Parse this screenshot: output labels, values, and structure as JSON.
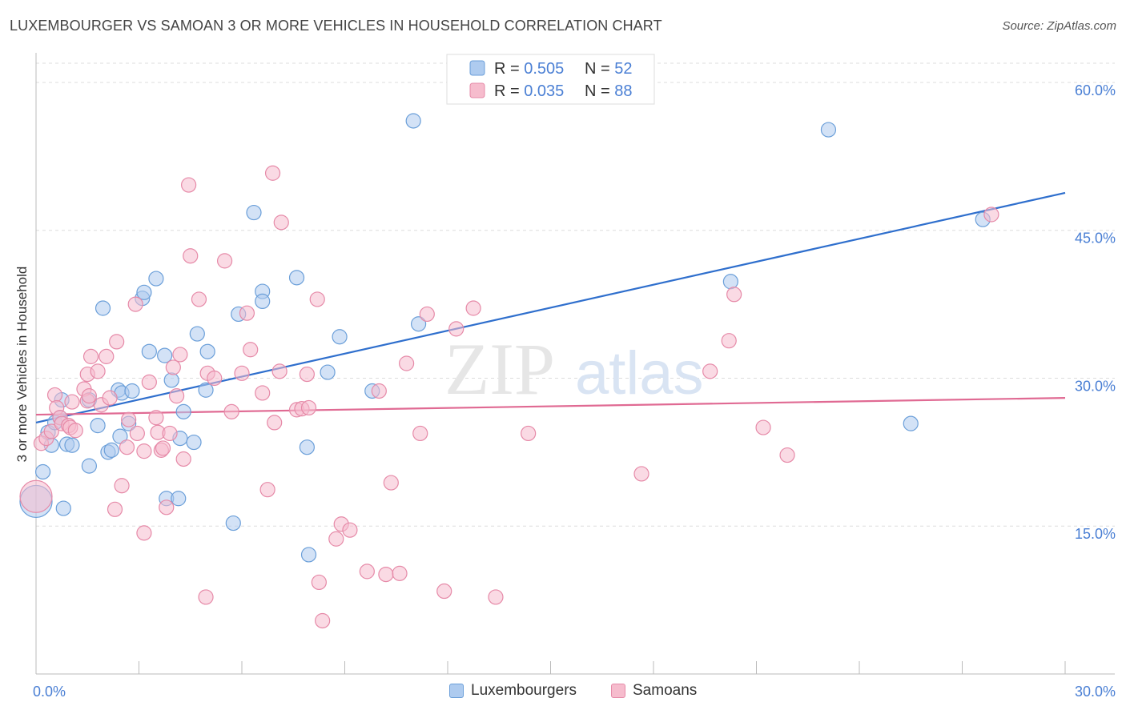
{
  "title": "LUXEMBOURGER VS SAMOAN 3 OR MORE VEHICLES IN HOUSEHOLD CORRELATION CHART",
  "source": "Source: ZipAtlas.com",
  "watermark": {
    "zip": "ZIP",
    "atlas": "atlas"
  },
  "colors": {
    "lux_fill": "#aecbef",
    "lux_stroke": "#6b9fd9",
    "lux_line": "#2f6fcd",
    "sam_fill": "#f6bccd",
    "sam_stroke": "#e68aa8",
    "sam_line": "#e06a93",
    "axis_text": "#4a7fd4",
    "grid": "#dddddd"
  },
  "legend": {
    "rows": [
      {
        "r_label": "R = ",
        "r_value": "0.505",
        "n_label": "N = ",
        "n_value": "52"
      },
      {
        "r_label": "R = ",
        "r_value": "0.035",
        "n_label": "N = ",
        "n_value": "88"
      }
    ]
  },
  "chart_data": {
    "type": "scatter",
    "title": "LUXEMBOURGER VS SAMOAN 3 OR MORE VEHICLES IN HOUSEHOLD CORRELATION CHART",
    "xlabel": "",
    "ylabel": "3 or more Vehicles in Household",
    "xlim": [
      0,
      30
    ],
    "ylim": [
      0,
      63
    ],
    "x_tick_labels": [
      "0.0%",
      "30.0%"
    ],
    "y_ticks": [
      15,
      30,
      45,
      60
    ],
    "y_tick_labels": [
      "15.0%",
      "30.0%",
      "45.0%",
      "60.0%"
    ],
    "grid": true,
    "legend_position": "top-center",
    "series": [
      {
        "name": "Luxembourgers",
        "trend": {
          "x": [
            0,
            30
          ],
          "y": [
            25.5,
            48.8
          ]
        },
        "points": [
          [
            0.0,
            17.5
          ],
          [
            0.2,
            20.5
          ],
          [
            0.35,
            24.5
          ],
          [
            0.45,
            23.2
          ],
          [
            0.55,
            25.5
          ],
          [
            0.7,
            26.0
          ],
          [
            0.75,
            27.8
          ],
          [
            0.8,
            16.8
          ],
          [
            0.9,
            23.3
          ],
          [
            1.05,
            23.2
          ],
          [
            1.55,
            27.8
          ],
          [
            1.55,
            21.1
          ],
          [
            1.8,
            25.2
          ],
          [
            1.95,
            37.1
          ],
          [
            2.1,
            22.5
          ],
          [
            2.2,
            22.7
          ],
          [
            2.4,
            28.8
          ],
          [
            2.45,
            24.1
          ],
          [
            2.5,
            28.5
          ],
          [
            2.7,
            25.4
          ],
          [
            2.8,
            28.7
          ],
          [
            3.1,
            38.1
          ],
          [
            3.15,
            38.7
          ],
          [
            3.3,
            32.7
          ],
          [
            3.5,
            40.1
          ],
          [
            3.75,
            32.3
          ],
          [
            3.8,
            17.8
          ],
          [
            3.95,
            29.8
          ],
          [
            4.15,
            17.8
          ],
          [
            4.2,
            23.9
          ],
          [
            4.3,
            26.6
          ],
          [
            4.6,
            23.5
          ],
          [
            4.7,
            34.5
          ],
          [
            4.95,
            28.8
          ],
          [
            5.0,
            32.7
          ],
          [
            5.75,
            15.3
          ],
          [
            5.9,
            36.5
          ],
          [
            6.35,
            46.8
          ],
          [
            6.6,
            38.8
          ],
          [
            6.6,
            37.8
          ],
          [
            7.6,
            40.2
          ],
          [
            7.9,
            23.0
          ],
          [
            7.95,
            12.1
          ],
          [
            8.5,
            30.6
          ],
          [
            8.85,
            34.2
          ],
          [
            9.8,
            28.7
          ],
          [
            11.0,
            56.1
          ],
          [
            11.15,
            35.5
          ],
          [
            20.25,
            39.8
          ],
          [
            23.1,
            55.2
          ],
          [
            25.5,
            25.4
          ],
          [
            27.6,
            46.1
          ]
        ]
      },
      {
        "name": "Samoans",
        "trend": {
          "x": [
            0,
            30
          ],
          "y": [
            26.3,
            28.0
          ]
        },
        "points": [
          [
            0.0,
            18.0
          ],
          [
            0.15,
            23.4
          ],
          [
            0.3,
            23.9
          ],
          [
            0.45,
            24.6
          ],
          [
            0.55,
            28.3
          ],
          [
            0.6,
            27.0
          ],
          [
            0.7,
            26.0
          ],
          [
            0.75,
            25.4
          ],
          [
            0.95,
            25.2
          ],
          [
            1.0,
            25.0
          ],
          [
            1.05,
            27.6
          ],
          [
            1.15,
            24.7
          ],
          [
            1.4,
            28.9
          ],
          [
            1.5,
            27.7
          ],
          [
            1.5,
            30.4
          ],
          [
            1.55,
            28.2
          ],
          [
            1.6,
            32.2
          ],
          [
            1.8,
            30.7
          ],
          [
            1.9,
            27.3
          ],
          [
            2.05,
            32.2
          ],
          [
            2.15,
            28.0
          ],
          [
            2.3,
            16.7
          ],
          [
            2.35,
            33.7
          ],
          [
            2.5,
            19.1
          ],
          [
            2.65,
            23.0
          ],
          [
            2.7,
            25.8
          ],
          [
            2.9,
            37.5
          ],
          [
            2.95,
            24.4
          ],
          [
            3.15,
            22.6
          ],
          [
            3.15,
            14.3
          ],
          [
            3.3,
            29.6
          ],
          [
            3.5,
            26.0
          ],
          [
            3.55,
            24.5
          ],
          [
            3.65,
            22.7
          ],
          [
            3.7,
            22.9
          ],
          [
            3.8,
            16.9
          ],
          [
            3.9,
            24.4
          ],
          [
            4.0,
            31.1
          ],
          [
            4.1,
            28.2
          ],
          [
            4.2,
            32.4
          ],
          [
            4.3,
            21.8
          ],
          [
            4.5,
            42.4
          ],
          [
            4.45,
            49.6
          ],
          [
            4.75,
            38.0
          ],
          [
            4.95,
            7.8
          ],
          [
            5.0,
            30.5
          ],
          [
            5.2,
            30.0
          ],
          [
            5.5,
            41.9
          ],
          [
            5.7,
            26.6
          ],
          [
            6.0,
            30.5
          ],
          [
            6.15,
            36.6
          ],
          [
            6.25,
            32.9
          ],
          [
            6.6,
            28.5
          ],
          [
            6.75,
            18.7
          ],
          [
            6.9,
            50.8
          ],
          [
            6.95,
            25.5
          ],
          [
            7.1,
            30.7
          ],
          [
            7.15,
            45.8
          ],
          [
            7.6,
            26.8
          ],
          [
            7.75,
            26.9
          ],
          [
            7.9,
            30.4
          ],
          [
            7.95,
            27.0
          ],
          [
            8.2,
            38.0
          ],
          [
            8.25,
            9.3
          ],
          [
            8.35,
            5.4
          ],
          [
            8.75,
            13.7
          ],
          [
            8.9,
            15.2
          ],
          [
            9.15,
            14.6
          ],
          [
            9.65,
            10.4
          ],
          [
            10.0,
            28.7
          ],
          [
            10.2,
            10.1
          ],
          [
            10.35,
            19.4
          ],
          [
            10.6,
            10.2
          ],
          [
            10.8,
            31.5
          ],
          [
            11.2,
            24.4
          ],
          [
            11.4,
            36.5
          ],
          [
            11.9,
            8.4
          ],
          [
            12.25,
            35.0
          ],
          [
            12.75,
            37.1
          ],
          [
            13.4,
            7.8
          ],
          [
            14.35,
            24.4
          ],
          [
            17.65,
            20.3
          ],
          [
            19.65,
            30.7
          ],
          [
            20.2,
            33.8
          ],
          [
            20.35,
            38.5
          ],
          [
            21.2,
            25.0
          ],
          [
            21.9,
            22.2
          ],
          [
            27.85,
            46.6
          ]
        ]
      }
    ]
  },
  "bottom_legend": [
    "Luxembourgers",
    "Samoans"
  ]
}
